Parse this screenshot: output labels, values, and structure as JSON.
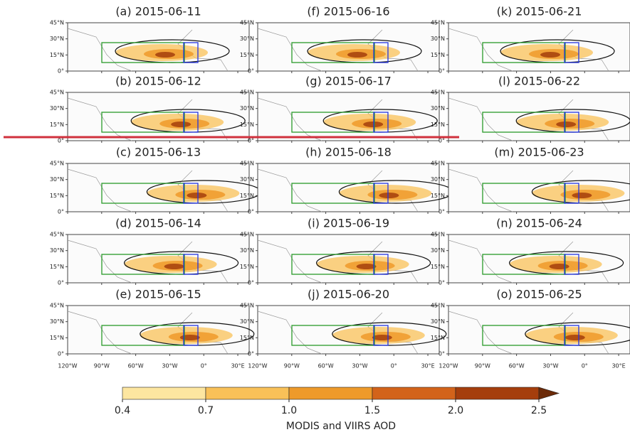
{
  "map": {
    "panels": [
      {
        "title": "(a) 2015-06-11"
      },
      {
        "title": "(b) 2015-06-12"
      },
      {
        "title": "(c) 2015-06-13"
      },
      {
        "title": "(d) 2015-06-14"
      },
      {
        "title": "(e) 2015-06-15"
      },
      {
        "title": "(f) 2015-06-16"
      },
      {
        "title": "(g) 2015-06-17"
      },
      {
        "title": "(h) 2015-06-18"
      },
      {
        "title": "(i) 2015-06-19"
      },
      {
        "title": "(j) 2015-06-20"
      },
      {
        "title": "(k) 2015-06-21"
      },
      {
        "title": "(l) 2015-06-22"
      },
      {
        "title": "(m) 2015-06-23"
      },
      {
        "title": "(n) 2015-06-24"
      },
      {
        "title": "(o) 2015-06-25"
      }
    ],
    "lonlim": [
      -120,
      40
    ],
    "latlim": [
      0,
      45
    ],
    "lon_ticks": [
      {
        "value": -120,
        "label": "120°W"
      },
      {
        "value": -90,
        "label": "90°W"
      },
      {
        "value": -60,
        "label": "60°W"
      },
      {
        "value": -30,
        "label": "30°W"
      },
      {
        "value": 0,
        "label": "0°"
      },
      {
        "value": 30,
        "label": "30°E"
      }
    ],
    "lat_ticks": [
      {
        "value": 0,
        "label": "0°"
      },
      {
        "value": 15,
        "label": "15°N"
      },
      {
        "value": 30,
        "label": "30°N"
      },
      {
        "value": 45,
        "label": "45°N"
      }
    ]
  },
  "colorbar": {
    "label": "MODIS and VIIRS AOD",
    "ticks": [
      0.4,
      0.7,
      {
        "value": 1,
        "label": "1.0"
      },
      1.5,
      {
        "value": 2,
        "label": "2.0"
      },
      2.5
    ],
    "colors": [
      "#fde6a0",
      "#f9c158",
      "#ee9a2a",
      "#d3631a",
      "#a53e0c",
      "#6b2a08"
    ]
  }
}
